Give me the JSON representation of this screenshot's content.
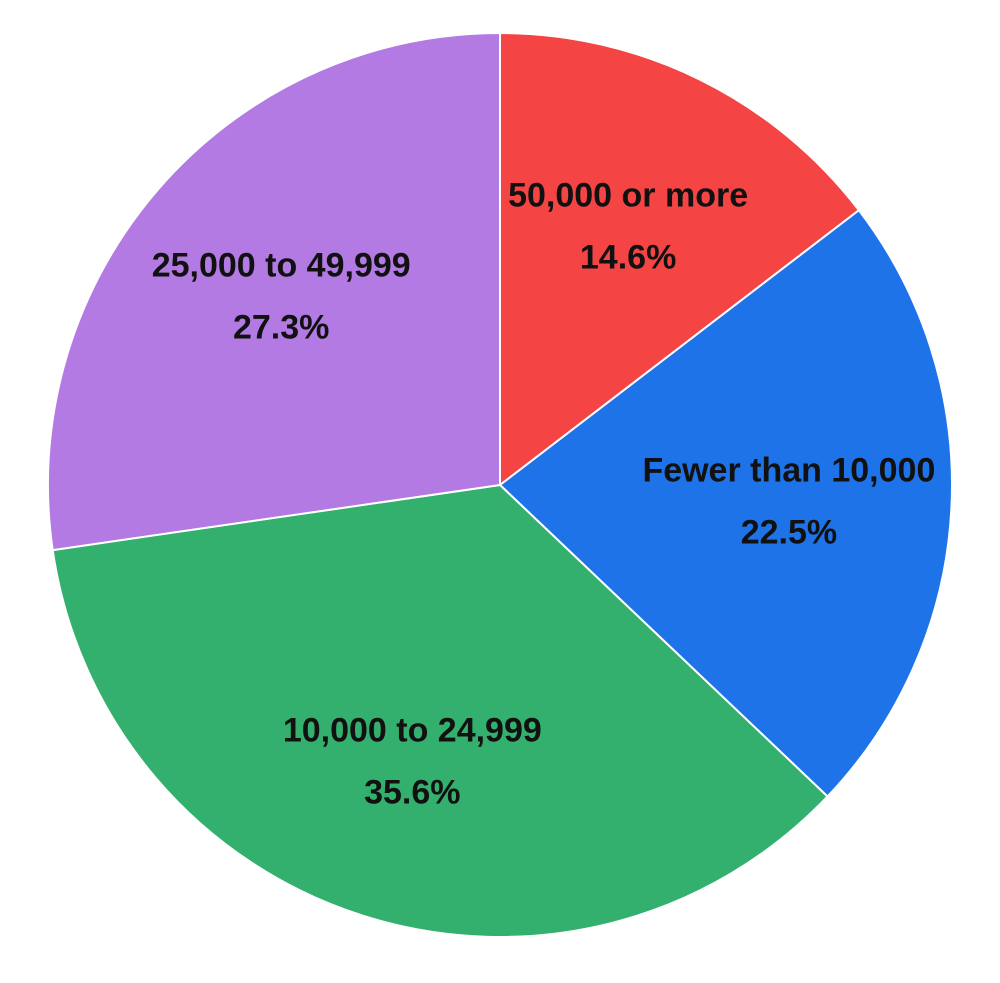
{
  "chart_data": {
    "type": "pie",
    "start_angle_deg": 0,
    "direction": "clockwise",
    "slices": [
      {
        "label": "50,000 or more",
        "value": 14.6,
        "value_label": "14.6%",
        "color": "#F44444"
      },
      {
        "label": "Fewer than 10,000",
        "value": 22.5,
        "value_label": "22.5%",
        "color": "#1F73E8"
      },
      {
        "label": "10,000 to 24,999",
        "value": 35.6,
        "value_label": "35.6%",
        "color": "#33B06E"
      },
      {
        "label": "25,000 to 49,999",
        "value": 27.3,
        "value_label": "27.3%",
        "color": "#B27AE2"
      }
    ],
    "title": "",
    "legend": "none",
    "slice_border_color": "#FFFFFF"
  }
}
